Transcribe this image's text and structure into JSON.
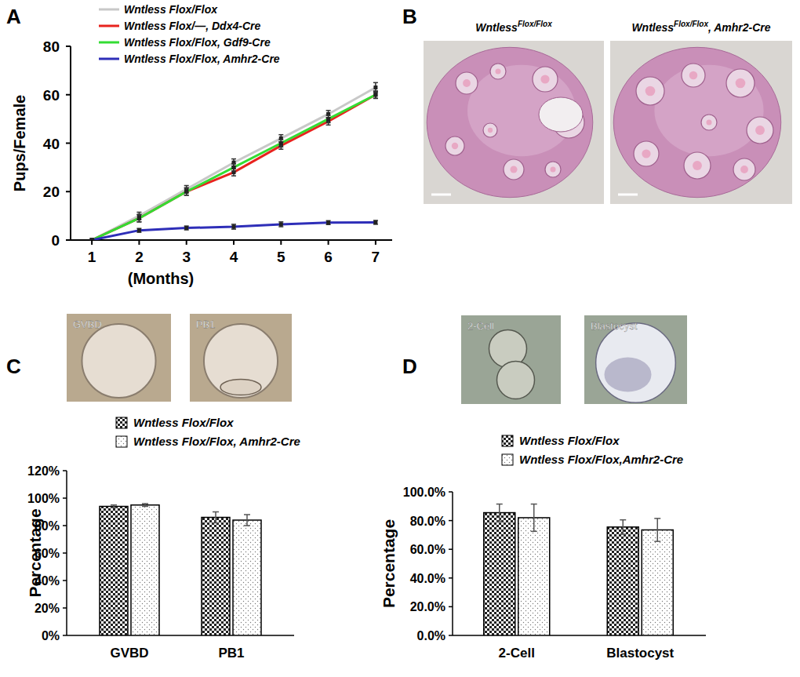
{
  "chart_data": [
    {
      "label": "A",
      "type": "line",
      "x": [
        1,
        2,
        3,
        4,
        5,
        6,
        7
      ],
      "xlim": [
        0.55,
        7.35
      ],
      "xticks": [
        1,
        2,
        3,
        4,
        5,
        6,
        7
      ],
      "ylim": [
        0,
        80
      ],
      "yticks": [
        0,
        20,
        40,
        60,
        80
      ],
      "x_label": "(Months)",
      "y_label": "Pups/Female",
      "legend": "top-left",
      "marker": "square",
      "series": [
        {
          "name": "Wntless Flox/Flox",
          "color": "#c8c8c8",
          "values": [
            0,
            10,
            21,
            32,
            42,
            52,
            63
          ],
          "errors": [
            0,
            1.5,
            1.5,
            1.5,
            1.5,
            1.5,
            2
          ]
        },
        {
          "name": "Wntless Flox/—, Ddx4-Cre",
          "color": "#e8231e",
          "values": [
            0,
            9,
            20,
            28,
            39,
            49,
            60
          ],
          "errors": [
            0,
            1.5,
            1.5,
            1.5,
            1.5,
            1.5,
            1.5
          ]
        },
        {
          "name": "Wntless Flox/Flox, Gdf9-Cre",
          "color": "#33dd33",
          "values": [
            0,
            9,
            20,
            30,
            40,
            50,
            60
          ],
          "errors": [
            0,
            1.5,
            1.5,
            1.5,
            1.5,
            1.5,
            1.5
          ]
        },
        {
          "name": "Wntless Flox/Flox, Amhr2-Cre",
          "color": "#2e2eb8",
          "values": [
            0,
            4,
            5,
            5.5,
            6.5,
            7.2,
            7.3
          ],
          "errors": [
            0,
            0.8,
            0.8,
            1,
            1,
            0.8,
            0.8
          ]
        }
      ]
    },
    {
      "label": "C",
      "type": "bar",
      "categories": [
        "GVBD",
        "PB1"
      ],
      "image_labels": [
        "GVBD",
        "PB1"
      ],
      "ylim": [
        0,
        120
      ],
      "yticks": [
        {
          "value": 0,
          "label": "0%"
        },
        {
          "value": 20,
          "label": "20%"
        },
        {
          "value": 40,
          "label": "40%"
        },
        {
          "value": 60,
          "label": "60%"
        },
        {
          "value": 80,
          "label": "80%"
        },
        {
          "value": 100,
          "label": "100%"
        },
        {
          "value": 120,
          "label": "120%"
        }
      ],
      "y_label": "Percentage",
      "legend": "top",
      "series": [
        {
          "name": "Wntless Flox/Flox",
          "color": "#222222",
          "values": [
            94,
            86
          ],
          "errors": [
            1,
            4
          ]
        },
        {
          "name": "Wntless Flox/Flox, Amhr2-Cre",
          "color": "#777777",
          "values": [
            95,
            84
          ],
          "errors": [
            1,
            4
          ]
        }
      ]
    },
    {
      "label": "D",
      "type": "bar",
      "categories": [
        "2-Cell",
        "Blastocyst"
      ],
      "image_labels": [
        "2-Cell",
        "Blastocyst"
      ],
      "ylim": [
        0,
        100
      ],
      "yticks": [
        {
          "value": 0,
          "label": "0.0%"
        },
        {
          "value": 20,
          "label": "20.0%"
        },
        {
          "value": 40,
          "label": "40.0%"
        },
        {
          "value": 60,
          "label": "60.0%"
        },
        {
          "value": 80,
          "label": "80.0%"
        },
        {
          "value": 100,
          "label": "100.0%"
        }
      ],
      "y_label": "Percentage",
      "legend": "top",
      "series": [
        {
          "name": "Wntless Flox/Flox",
          "color": "#222222",
          "values": [
            85.5,
            75.5
          ],
          "errors": [
            6,
            5
          ]
        },
        {
          "name": "Wntless Flox/Flox,Amhr2-Cre",
          "color": "#777777",
          "values": [
            82,
            73.5
          ],
          "errors": [
            9.5,
            8
          ]
        }
      ]
    }
  ],
  "micrographs": {
    "label": "B",
    "titles": [
      "Wntless Flox/Flox",
      "Wntless Flox/Flox, Amhr2-Cre"
    ]
  }
}
